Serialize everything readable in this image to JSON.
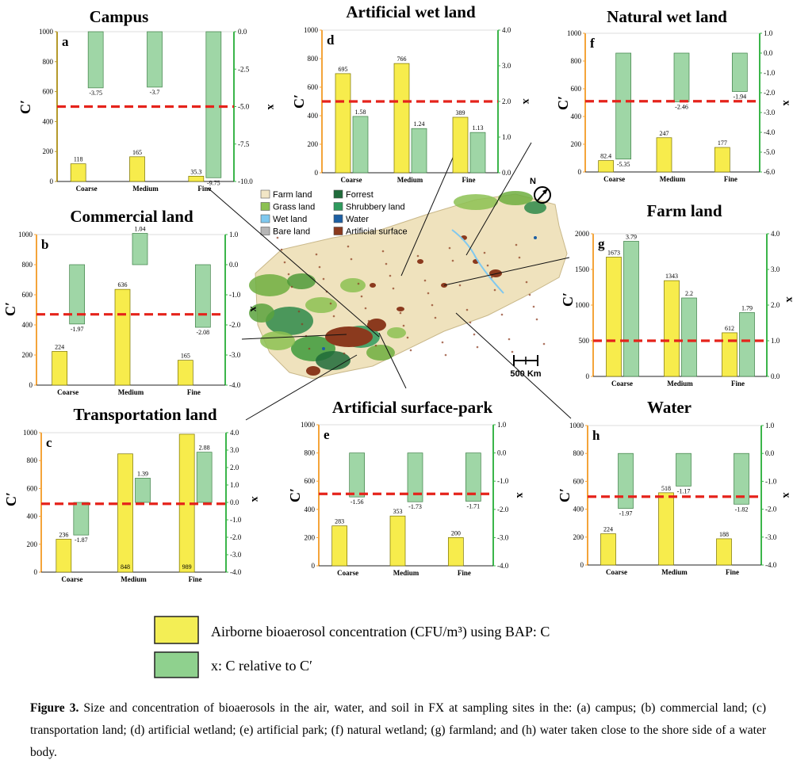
{
  "colors": {
    "bar": "#f7ec4c",
    "bar_border": "#7a7200",
    "x_bar": "#9fd6a6",
    "x_border": "#3e7f46",
    "threshold": "#e5231b",
    "left_axis": "#f4a43a",
    "right_axis": "#3bb54a",
    "campus_left_axis": "#b59a2c"
  },
  "legend": {
    "bar_label": "Airborne bioaerosol concentration (CFU/m³) using BAP: C",
    "x_label": "x: C relative to C′"
  },
  "caption": {
    "lead": "Figure 3.",
    "text": " Size and concentration of bioaerosols in the air, water, and soil in FX at sampling sites in the: (a) campus; (b) commercial land; (c) transportation land; (d) artificial wetland; (e) artificial park; (f) natural wetland; (g) farmland; and (h) water taken close to the shore side of a water body."
  },
  "map": {
    "legend": [
      {
        "label": "Farm land",
        "color": "#f2e6c6"
      },
      {
        "label": "Forrest",
        "color": "#1f6b3a"
      },
      {
        "label": "Grass land",
        "color": "#8cc152"
      },
      {
        "label": "Shrubbery land",
        "color": "#2e9a5d"
      },
      {
        "label": "Wet land",
        "color": "#7fc8ef"
      },
      {
        "label": "Water",
        "color": "#1d5fa3"
      },
      {
        "label": "Bare land",
        "color": "#b5b5b5"
      },
      {
        "label": "Artificial surface",
        "color": "#8b3a1e"
      }
    ],
    "scale_label": "500 Km",
    "north_label": "N"
  },
  "chart_data": [
    {
      "type": "bar",
      "panel": "a",
      "title": "Campus",
      "ylabel": "C′",
      "y2label": "x",
      "categories": [
        "Coarse",
        "Medium",
        "Fine"
      ],
      "ylim": [
        0,
        1000
      ],
      "yticks": [
        0,
        200,
        400,
        600,
        800,
        1000
      ],
      "y2lim": [
        -10,
        0
      ],
      "y2ticks": [
        "0.0",
        "-2.5",
        "-5.0",
        "-7.5",
        "-10.0"
      ],
      "y2tickvals": [
        0,
        -2.5,
        -5,
        -7.5,
        -10
      ],
      "threshold_left": 500,
      "series": [
        {
          "values": [
            118,
            165,
            35.3
          ],
          "labels": [
            "118",
            "165",
            "35.3"
          ]
        },
        {
          "values": [
            -3.75,
            -3.7,
            -9.75
          ],
          "labels": [
            "-3.75",
            "-3.7",
            "-9.75"
          ]
        }
      ]
    },
    {
      "type": "bar",
      "panel": "b",
      "title": "Commercial land",
      "ylabel": "C′",
      "y2label": "x",
      "categories": [
        "Coarse",
        "Medium",
        "Fine"
      ],
      "ylim": [
        0,
        1000
      ],
      "yticks": [
        0,
        200,
        400,
        600,
        800,
        1000
      ],
      "y2lim": [
        -4,
        1
      ],
      "y2ticks": [
        "1.0",
        "0.0",
        "-1.0",
        "-2.0",
        "-3.0",
        "-4.0"
      ],
      "y2tickvals": [
        1,
        0,
        -1,
        -2,
        -3,
        -4
      ],
      "threshold_left": 470,
      "series": [
        {
          "values": [
            224,
            636,
            165
          ],
          "labels": [
            "224",
            "636",
            "165"
          ]
        },
        {
          "values": [
            -1.97,
            1.04,
            -2.08
          ],
          "labels": [
            "-1.97",
            "1.04",
            "-2.08"
          ]
        }
      ]
    },
    {
      "type": "bar",
      "panel": "c",
      "title": "Transportation land",
      "ylabel": "C′",
      "y2label": "x",
      "categories": [
        "Coarse",
        "Medium",
        "Fine"
      ],
      "ylim": [
        0,
        1000
      ],
      "yticks": [
        0,
        200,
        400,
        600,
        800,
        1000
      ],
      "y2lim": [
        -4,
        4
      ],
      "y2ticks": [
        "4.0",
        "3.0",
        "2.0",
        "1.0",
        "0.0",
        "-1.0",
        "-2.0",
        "-3.0",
        "-4.0"
      ],
      "y2tickvals": [
        4,
        3,
        2,
        1,
        0,
        -1,
        -2,
        -3,
        -4
      ],
      "threshold_left": 490,
      "series": [
        {
          "values": [
            236,
            848,
            989
          ],
          "labels": [
            "236",
            "848",
            "989"
          ]
        },
        {
          "values": [
            -1.87,
            1.39,
            2.88
          ],
          "labels": [
            "-1.87",
            "1.39",
            "2.88"
          ]
        }
      ]
    },
    {
      "type": "bar",
      "panel": "d",
      "title": "Artificial wet land",
      "ylabel": "C′",
      "y2label": "x",
      "categories": [
        "Coarse",
        "Medium",
        "Fine"
      ],
      "ylim": [
        0,
        1000
      ],
      "yticks": [
        0,
        200,
        400,
        600,
        800,
        1000
      ],
      "y2lim": [
        0,
        4
      ],
      "y2ticks": [
        "0.0",
        "1.0",
        "2.0",
        "3.0",
        "4.0"
      ],
      "y2tickvals": [
        0,
        1,
        2,
        3,
        4
      ],
      "threshold_left": 500,
      "series": [
        {
          "values": [
            695,
            766,
            389
          ],
          "labels": [
            "695",
            "766",
            "389"
          ]
        },
        {
          "values": [
            1.58,
            1.24,
            1.13
          ],
          "labels": [
            "1.58",
            "1.24",
            "1.13"
          ]
        }
      ]
    },
    {
      "type": "bar",
      "panel": "e",
      "title": "Artificial surface-park",
      "ylabel": "C′",
      "y2label": "x",
      "categories": [
        "Coarse",
        "Medium",
        "Fine"
      ],
      "ylim": [
        0,
        1000
      ],
      "yticks": [
        0,
        200,
        400,
        600,
        800,
        1000
      ],
      "y2lim": [
        -4,
        1
      ],
      "y2ticks": [
        "1.0",
        "0.0",
        "-1.0",
        "-2.0",
        "-3.0",
        "-4.0"
      ],
      "y2tickvals": [
        1,
        0,
        -1,
        -2,
        -3,
        -4
      ],
      "threshold_left": 510,
      "series": [
        {
          "values": [
            283,
            353,
            200
          ],
          "labels": [
            "283",
            "353",
            "200"
          ]
        },
        {
          "values": [
            -1.56,
            -1.73,
            -1.71
          ],
          "labels": [
            "-1.56",
            "-1.73",
            "-1.71"
          ]
        }
      ]
    },
    {
      "type": "bar",
      "panel": "f",
      "title": "Natural wet land",
      "ylabel": "C′",
      "y2label": "x",
      "categories": [
        "Coarse",
        "Medium",
        "Fine"
      ],
      "ylim": [
        0,
        1000
      ],
      "yticks": [
        0,
        200,
        400,
        600,
        800,
        1000
      ],
      "y2lim": [
        -6,
        1
      ],
      "y2ticks": [
        "1.0",
        "0.0",
        "-1.0",
        "-2.0",
        "-3.0",
        "-4.0",
        "-5.0",
        "-6.0"
      ],
      "y2tickvals": [
        1,
        0,
        -1,
        -2,
        -3,
        -4,
        -5,
        -6
      ],
      "threshold_left": 510,
      "series": [
        {
          "values": [
            82.4,
            247,
            177
          ],
          "labels": [
            "82.4",
            "247",
            "177"
          ]
        },
        {
          "values": [
            -5.35,
            -2.46,
            -1.94
          ],
          "labels": [
            "-5.35",
            "-2.46",
            "-1.94"
          ]
        }
      ]
    },
    {
      "type": "bar",
      "panel": "g",
      "title": "Farm land",
      "ylabel": "C′",
      "y2label": "x",
      "categories": [
        "Coarse",
        "Medium",
        "Fine"
      ],
      "ylim": [
        0,
        2000
      ],
      "yticks": [
        0,
        500,
        1000,
        1500,
        2000
      ],
      "y2lim": [
        0,
        4
      ],
      "y2ticks": [
        "0.0",
        "1.0",
        "2.0",
        "3.0",
        "4.0"
      ],
      "y2tickvals": [
        0,
        1,
        2,
        3,
        4
      ],
      "threshold_left": 500,
      "series": [
        {
          "values": [
            1673,
            1343,
            612
          ],
          "labels": [
            "1673",
            "1343",
            "612"
          ]
        },
        {
          "values": [
            3.79,
            2.2,
            1.79
          ],
          "labels": [
            "3.79",
            "2.2",
            "1.79"
          ]
        }
      ]
    },
    {
      "type": "bar",
      "panel": "h",
      "title": "Water",
      "ylabel": "C′",
      "y2label": "x",
      "categories": [
        "Coarse",
        "Medium",
        "Fine"
      ],
      "ylim": [
        0,
        1000
      ],
      "yticks": [
        0,
        200,
        400,
        600,
        800,
        1000
      ],
      "y2lim": [
        -4,
        1
      ],
      "y2ticks": [
        "1.0",
        "0.0",
        "-1.0",
        "-2.0",
        "-3.0",
        "-4.0"
      ],
      "y2tickvals": [
        1,
        0,
        -1,
        -2,
        -3,
        -4
      ],
      "threshold_left": 490,
      "series": [
        {
          "values": [
            224,
            518,
            188
          ],
          "labels": [
            "224",
            "518",
            "188"
          ]
        },
        {
          "values": [
            -1.97,
            -1.17,
            -1.82
          ],
          "labels": [
            "-1.97",
            "-1.17",
            "-1.82"
          ]
        }
      ]
    }
  ]
}
